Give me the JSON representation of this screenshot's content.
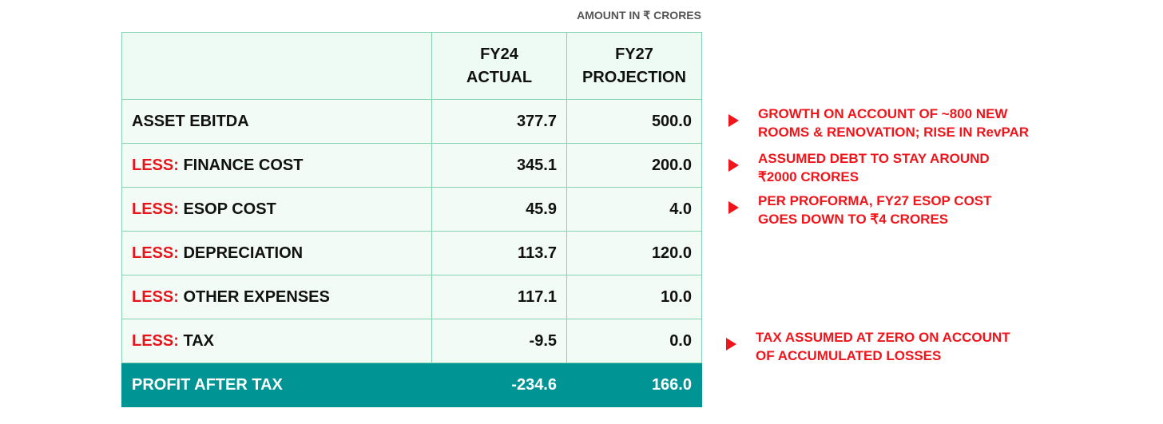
{
  "unit_note": "AMOUNT IN ₹ CRORES",
  "table": {
    "columns": [
      [
        "FY24",
        "ACTUAL"
      ],
      [
        "FY27",
        "PROJECTION"
      ]
    ],
    "rows": [
      {
        "label": "ASSET EBITDA",
        "values": [
          "377.7",
          "500.0"
        ]
      },
      {
        "prefix": "LESS:",
        "label": "FINANCE COST",
        "values": [
          "345.1",
          "200.0"
        ]
      },
      {
        "prefix": "LESS:",
        "label": "ESOP COST",
        "values": [
          "45.9",
          "4.0"
        ]
      },
      {
        "prefix": "LESS:",
        "label": "DEPRECIATION",
        "values": [
          "113.7",
          "120.0"
        ]
      },
      {
        "prefix": "LESS:",
        "label": "OTHER EXPENSES",
        "values": [
          "117.1",
          "10.0"
        ]
      },
      {
        "prefix": "LESS:",
        "label": "TAX",
        "values": [
          "-9.5",
          "0.0"
        ]
      }
    ],
    "total": {
      "label": "PROFIT AFTER TAX",
      "values": [
        "-234.6",
        "166.0"
      ]
    }
  },
  "notes": [
    [
      "GROWTH ON ACCOUNT OF ~800 NEW",
      "ROOMS & RENOVATION; RISE IN RevPAR"
    ],
    [
      "ASSUMED DEBT TO STAY AROUND",
      "₹2000 CRORES"
    ],
    [
      "PER PROFORMA, FY27 ESOP COST",
      "GOES DOWN TO ₹4 CRORES"
    ],
    [
      "TAX ASSUMED AT ZERO ON ACCOUNT",
      "OF ACCUMULATED LOSSES"
    ]
  ]
}
